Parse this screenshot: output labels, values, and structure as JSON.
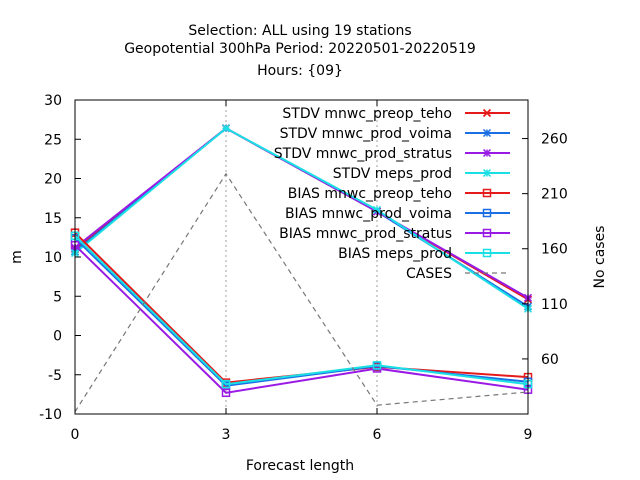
{
  "chart_data": {
    "type": "line",
    "title_lines": [
      "Selection: ALL using    19 stations",
      "Geopotential 300hPa   Period: 20220501-20220519",
      "Hours: {09}"
    ],
    "xlabel": "Forecast length",
    "ylabel": "m",
    "y2label": "No cases",
    "x": [
      0,
      3,
      6,
      9
    ],
    "xlim": [
      0,
      9
    ],
    "ylim": [
      -10,
      30
    ],
    "y2lim": [
      10,
      295
    ],
    "x_ticks": [
      0,
      3,
      6,
      9
    ],
    "y_ticks": [
      -10,
      -5,
      0,
      5,
      10,
      15,
      20,
      25,
      30
    ],
    "y2_ticks": [
      60,
      110,
      160,
      210,
      260
    ],
    "grid_x": [
      3,
      6
    ],
    "legend_position": "top-right",
    "series": [
      {
        "name": "STDV mnwc_preop_teho",
        "color": "#e51a1a",
        "marker": "x",
        "axis": "y1",
        "values": [
          11.0,
          26.4,
          15.8,
          4.6
        ]
      },
      {
        "name": "STDV mnwc_prod_voima",
        "color": "#1a6fe5",
        "marker": "star",
        "axis": "y1",
        "values": [
          10.7,
          26.4,
          15.8,
          3.7
        ]
      },
      {
        "name": "STDV mnwc_prod_stratus",
        "color": "#9a1ae5",
        "marker": "star",
        "axis": "y1",
        "values": [
          11.2,
          26.4,
          15.8,
          4.8
        ]
      },
      {
        "name": "STDV meps_prod",
        "color": "#1ae0e5",
        "marker": "star",
        "axis": "y1",
        "values": [
          10.5,
          26.4,
          16.0,
          3.4
        ]
      },
      {
        "name": "BIAS mnwc_preop_teho",
        "color": "#e51a1a",
        "marker": "square",
        "axis": "y1",
        "values": [
          13.1,
          -6.0,
          -4.0,
          -5.3
        ]
      },
      {
        "name": "BIAS mnwc_prod_voima",
        "color": "#1a6fe5",
        "marker": "square",
        "axis": "y1",
        "values": [
          12.4,
          -6.4,
          -3.9,
          -5.9
        ]
      },
      {
        "name": "BIAS mnwc_prod_stratus",
        "color": "#9a1ae5",
        "marker": "square",
        "axis": "y1",
        "values": [
          11.5,
          -7.3,
          -4.2,
          -6.9
        ]
      },
      {
        "name": "BIAS meps_prod",
        "color": "#1ae0e5",
        "marker": "square",
        "axis": "y1",
        "values": [
          12.7,
          -6.2,
          -3.8,
          -6.2
        ]
      },
      {
        "name": "CASES",
        "color": "#777777",
        "marker": "none",
        "dashed": true,
        "axis": "y2",
        "values": [
          12,
          228,
          18,
          30
        ]
      }
    ]
  }
}
